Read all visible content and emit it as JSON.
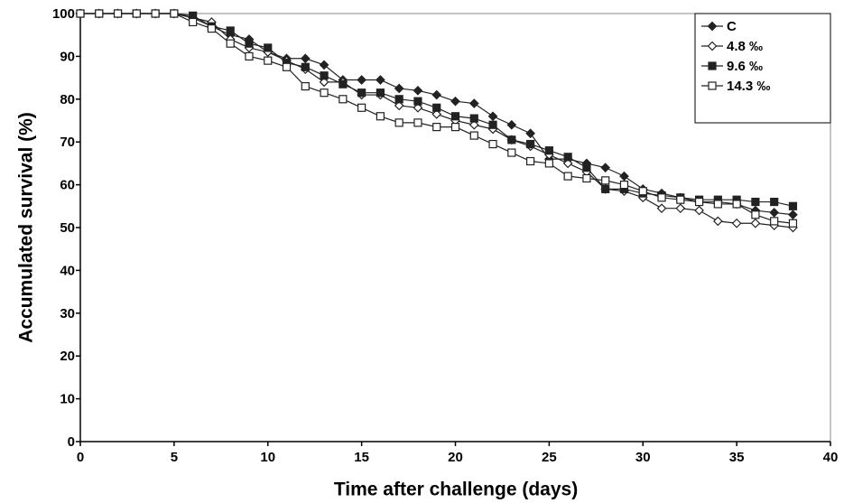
{
  "chart_data": {
    "type": "line",
    "x_label": "Time after challenge (days)",
    "y_label": "Accumulated survival (%)",
    "x": [
      0,
      1,
      2,
      3,
      4,
      5,
      6,
      7,
      8,
      9,
      10,
      11,
      12,
      13,
      14,
      15,
      16,
      17,
      18,
      19,
      20,
      21,
      22,
      23,
      24,
      25,
      26,
      27,
      28,
      29,
      30,
      31,
      32,
      33,
      34,
      35,
      36,
      37,
      38
    ],
    "series": [
      {
        "name": "C",
        "color": "#222222",
        "marker": "diamond-filled",
        "values": [
          100,
          100,
          100,
          100,
          100,
          100,
          99,
          97,
          95,
          94,
          91,
          89.5,
          89.5,
          88,
          84.5,
          84.5,
          84.5,
          82.5,
          82,
          81,
          79.5,
          79,
          76,
          74,
          72,
          66,
          66,
          65,
          64,
          62,
          59,
          58,
          57,
          56,
          56,
          55.5,
          54,
          53.5,
          53
        ]
      },
      {
        "name": "4.8 ‰",
        "color": "#222222",
        "marker": "diamond-open",
        "values": [
          100,
          100,
          100,
          100,
          100,
          100,
          99,
          98,
          94,
          92,
          91,
          89,
          87,
          84,
          84,
          81,
          81,
          78.5,
          78,
          76.5,
          75,
          74,
          73,
          70.5,
          69,
          67,
          65,
          63,
          59,
          58.5,
          57,
          54.5,
          54.5,
          54,
          51.5,
          51,
          51,
          50.5,
          50
        ]
      },
      {
        "name": "9.6 ‰",
        "color": "#222222",
        "marker": "square-filled",
        "values": [
          100,
          100,
          100,
          100,
          100,
          100,
          99.5,
          97,
          96,
          93,
          92,
          88.5,
          87.5,
          85.5,
          83.5,
          81.5,
          81.5,
          80,
          79.5,
          78,
          76,
          75.5,
          74,
          70.5,
          69.5,
          68,
          66.5,
          64,
          59,
          59,
          58,
          57.5,
          57,
          56.5,
          56.5,
          56.5,
          56,
          56,
          55
        ]
      },
      {
        "name": "14.3 ‰",
        "color": "#222222",
        "marker": "square-open",
        "values": [
          100,
          100,
          100,
          100,
          100,
          100,
          98,
          96.5,
          93,
          90,
          89,
          87.5,
          83,
          81.5,
          80,
          78,
          76,
          74.5,
          74.5,
          73.5,
          73.5,
          71.5,
          69.5,
          67.5,
          65.5,
          65,
          62,
          61.5,
          61,
          60,
          58.5,
          57,
          56.5,
          56,
          55.5,
          55.5,
          53,
          51.5,
          51
        ]
      }
    ],
    "xlim": [
      0,
      40
    ],
    "xticks": [
      0,
      5,
      10,
      15,
      20,
      25,
      30,
      35,
      40
    ],
    "ylim": [
      0,
      100
    ],
    "yticks": [
      0,
      10,
      20,
      30,
      40,
      50,
      60,
      70,
      80,
      90,
      100
    ],
    "grid": false,
    "legend_position": "upper right"
  }
}
